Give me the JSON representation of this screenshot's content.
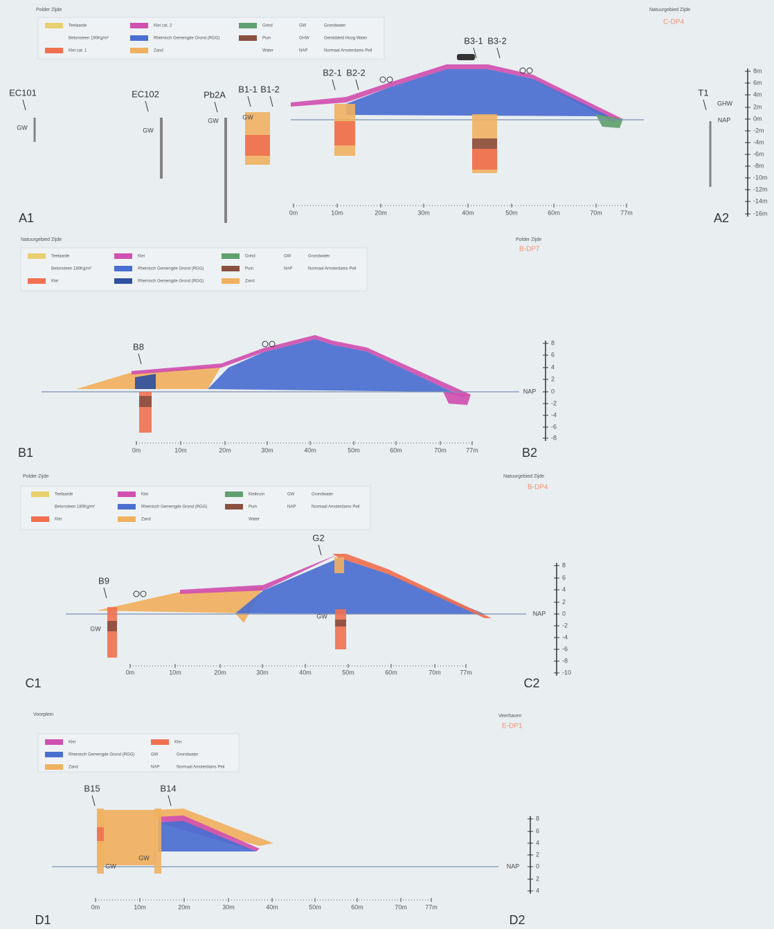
{
  "panels": [
    {
      "left_side": "Polder Zijde",
      "right_side": "Natuurgebied Zijde",
      "code": "C-DP4",
      "legend": [
        {
          "label": "Teelaarde",
          "color": "#e8d070"
        },
        {
          "label": "Betonsteen 180Kg/m²"
        },
        {
          "label": "Klei cat. 1",
          "color": "#f07050"
        },
        {
          "label": "Klei cat. 2",
          "color": "#d050b0"
        },
        {
          "label": "Rheinisch Gemengde Grond (RGG)",
          "color": "#4a6fd0"
        },
        {
          "label": "Zand",
          "color": "#f0b060"
        },
        {
          "label": "Grind",
          "color": "#60a070"
        },
        {
          "label": "Puin",
          "color": "#8a5040"
        },
        {
          "label": "Water"
        }
      ],
      "abbreviations": [
        {
          "abbr": "GW",
          "meaning": "Grondwater"
        },
        {
          "abbr": "GHW",
          "meaning": "Gemiddeld Hoog Water"
        },
        {
          "abbr": "NAP",
          "meaning": "Normaal Amsterdams Peil"
        }
      ],
      "borings": [
        "EC101",
        "EC102",
        "Pb2A",
        "B1-1",
        "B1-2",
        "B2-1",
        "B2-2",
        "B3-1",
        "B3-2",
        "T1"
      ],
      "markers": [
        "GW",
        "GW",
        "GW",
        "GW",
        "GHW",
        "NAP"
      ],
      "levels": [
        "8m",
        "6m",
        "4m",
        "2m",
        "0m",
        "-2m",
        "-4m",
        "-6m",
        "-8m",
        "-10m",
        "-12m",
        "-14m",
        "-16m"
      ],
      "distances": [
        "0m",
        "10m",
        "20m",
        "30m",
        "40m",
        "50m",
        "60m",
        "70m",
        "77m"
      ],
      "section_start": "A1",
      "section_end": "A2"
    },
    {
      "left_side": "Natuurgebied Zijde",
      "right_side": "Polder Zijde",
      "code": "B-DP7",
      "legend": [
        {
          "label": "Teelaarde",
          "color": "#e8d070"
        },
        {
          "label": "Betonsteen 180Kg/m²"
        },
        {
          "label": "Klei",
          "color": "#f07050"
        },
        {
          "label": "Klei",
          "color": "#d050b0"
        },
        {
          "label": "Rheinisch Gemengde Grond (RGG)",
          "color": "#4a6fd0"
        },
        {
          "label": "Rheinisch Gemengde Grond (RGG)",
          "color": "#3050a0"
        },
        {
          "label": "Grind",
          "color": "#60a070"
        },
        {
          "label": "Puin",
          "color": "#8a5040"
        },
        {
          "label": "Zand",
          "color": "#f0b060"
        }
      ],
      "abbreviations": [
        {
          "abbr": "GW",
          "meaning": "Grondwater"
        },
        {
          "abbr": "NAP",
          "meaning": "Normaal Amsterdams Peil"
        }
      ],
      "borings": [
        "B8"
      ],
      "markers": [
        "NAP"
      ],
      "levels": [
        "8",
        "6",
        "4",
        "2",
        "0",
        "-2",
        "-4",
        "-6",
        "-8"
      ],
      "distances": [
        "0m",
        "10m",
        "20m",
        "30m",
        "40m",
        "50m",
        "60m",
        "70m",
        "77m"
      ],
      "section_start": "B1",
      "section_end": "B2"
    },
    {
      "left_side": "Polder Zijde",
      "right_side": "Natuurgebied Zijde",
      "code": "B-DP4",
      "legend": [
        {
          "label": "Teelaarde",
          "color": "#e8d070"
        },
        {
          "label": "Betonsteen 180Kg/m²"
        },
        {
          "label": "Klei",
          "color": "#f07050"
        },
        {
          "label": "Klei",
          "color": "#d050b0"
        },
        {
          "label": "Rheinisch Gemengde Grond (RGG)",
          "color": "#4a6fd0"
        },
        {
          "label": "Zand",
          "color": "#f0b060"
        },
        {
          "label": "Kleikruin",
          "color": "#60a070"
        },
        {
          "label": "Puin",
          "color": "#8a5040"
        },
        {
          "label": "Water"
        }
      ],
      "abbreviations": [
        {
          "abbr": "GW",
          "meaning": "Grondwater"
        },
        {
          "abbr": "NAP",
          "meaning": "Normaal Amsterdams Peil"
        }
      ],
      "borings": [
        "B9",
        "G2"
      ],
      "markers": [
        "GW",
        "GW",
        "NAP"
      ],
      "levels": [
        "8",
        "6",
        "4",
        "2",
        "0",
        "-2",
        "-4",
        "-6",
        "-8",
        "-10"
      ],
      "distances": [
        "0m",
        "10m",
        "20m",
        "30m",
        "40m",
        "50m",
        "60m",
        "70m",
        "77m"
      ],
      "section_start": "C1",
      "section_end": "C2"
    },
    {
      "left_side": "Voorplein",
      "right_side": "Veerhaven",
      "code": "E-DP1",
      "legend": [
        {
          "label": "Klei",
          "color": "#d050b0"
        },
        {
          "label": "Rheinisch Gemengde Grond (RGG)",
          "color": "#4a6fd0"
        },
        {
          "label": "Zand",
          "color": "#f0b060"
        },
        {
          "label": "Klei",
          "color": "#f07050"
        }
      ],
      "abbreviations": [
        {
          "abbr": "GW",
          "meaning": "Grondwater"
        },
        {
          "abbr": "NAP",
          "meaning": "Normaal Amsterdams Peil"
        }
      ],
      "borings": [
        "B15",
        "B14"
      ],
      "markers": [
        "GW",
        "GW",
        "NAP"
      ],
      "levels": [
        "8",
        "6",
        "4",
        "2",
        "0",
        "2",
        "4"
      ],
      "distances": [
        "0m",
        "10m",
        "20m",
        "30m",
        "40m",
        "50m",
        "60m",
        "70m",
        "77m"
      ],
      "section_start": "D1",
      "section_end": "D2"
    }
  ]
}
